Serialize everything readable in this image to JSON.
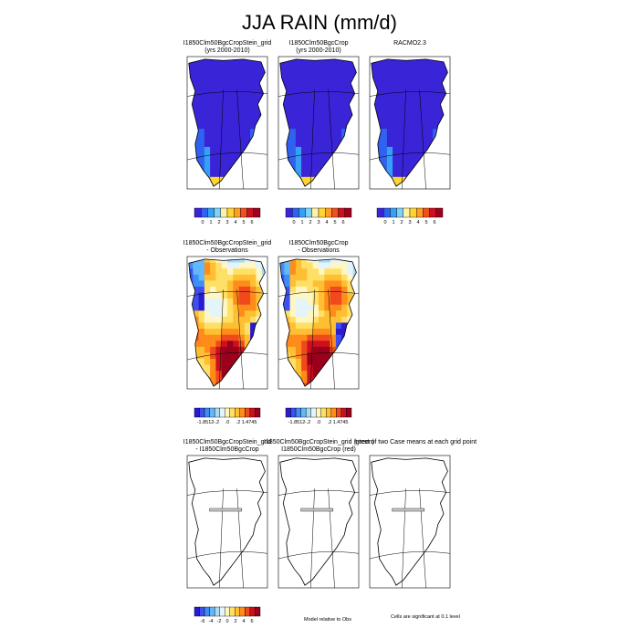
{
  "title": "JJA RAIN (mm/d)",
  "colors": {
    "ocean": "#ffffff",
    "outline": "#000000",
    "ice": "#3a5ad6",
    "land_fill": "#ffffff"
  },
  "rows": [
    {
      "panels": [
        {
          "title": "I1850Clm50BgcCropStein_grid",
          "subtitle": "(yrs 2000-2010)",
          "field": "model_a"
        },
        {
          "title": "I1850Clm50BgcCrop",
          "subtitle": "(yrs 2000-2010)",
          "field": "model_b"
        },
        {
          "title": "RACMO2.3",
          "subtitle": "",
          "field": "obs"
        }
      ],
      "colorbars": [
        {
          "ticks": [
            "0",
            "1",
            "2",
            "3",
            "4",
            "5",
            "6"
          ],
          "colors": [
            "#3a24d8",
            "#2f62f0",
            "#36a0f7",
            "#7fd1f5",
            "#fff2a6",
            "#ffd433",
            "#ff9e1f",
            "#f0501e",
            "#cc1020",
            "#a0001f"
          ]
        },
        {
          "ticks": [
            "0",
            "1",
            "2",
            "3",
            "4",
            "5",
            "6"
          ],
          "colors": [
            "#3a24d8",
            "#2f62f0",
            "#36a0f7",
            "#7fd1f5",
            "#fff2a6",
            "#ffd433",
            "#ff9e1f",
            "#f0501e",
            "#cc1020",
            "#a0001f"
          ]
        },
        {
          "ticks": [
            "0",
            "1",
            "2",
            "3",
            "4",
            "5",
            "6"
          ],
          "colors": [
            "#3a24d8",
            "#2f62f0",
            "#36a0f7",
            "#7fd1f5",
            "#fff2a6",
            "#ffd433",
            "#ff9e1f",
            "#f0501e",
            "#cc1020",
            "#a0001f"
          ]
        }
      ]
    },
    {
      "panels": [
        {
          "title": "I1850Clm50BgcCropStein_grid",
          "subtitle": "- Observations",
          "field": "diff_obs_a"
        },
        {
          "title": "I1850Clm50BgcCrop",
          "subtitle": "- Observations",
          "field": "diff_obs_b"
        }
      ],
      "colorbars": [
        {
          "ticks": [
            "-1.8512",
            "-.2",
            ".0",
            ".2",
            "1.4745"
          ],
          "colors": [
            "#2a1ad0",
            "#3d4ff0",
            "#3f8ef7",
            "#63b8fa",
            "#a8dcf6",
            "#e4f4fb",
            "#fff6c2",
            "#ffe066",
            "#ffbf33",
            "#ff8c1a",
            "#f04a1c",
            "#cc1020",
            "#9a001c"
          ]
        },
        {
          "ticks": [
            "-1.8512",
            "-.2",
            ".0",
            ".2",
            "1.4745"
          ],
          "colors": [
            "#2a1ad0",
            "#3d4ff0",
            "#3f8ef7",
            "#63b8fa",
            "#a8dcf6",
            "#e4f4fb",
            "#fff6c2",
            "#ffe066",
            "#ffbf33",
            "#ff8c1a",
            "#f04a1c",
            "#cc1020",
            "#9a001c"
          ]
        }
      ]
    },
    {
      "panels": [
        {
          "title": "I1850Clm50BgcCropStein_grid",
          "subtitle": "- I1850Clm50BgcCrop",
          "field": "outline"
        },
        {
          "title": "I1850Clm50BgcCropStein_grid (green)",
          "subtitle": "I1850Clm50BgcCrop (red)",
          "field": "outline"
        },
        {
          "title": "t-test of two Case means at each grid point",
          "subtitle": "",
          "field": "outline"
        }
      ],
      "colorbars": [
        {
          "ticks": [
            "-6",
            "-4",
            "-2",
            "0",
            "2",
            "4",
            "6"
          ],
          "colors": [
            "#2a1ad0",
            "#3d4ff0",
            "#3f8ef7",
            "#63b8fa",
            "#a8dcf6",
            "#e4f4fb",
            "#fff6c2",
            "#ffe066",
            "#ffbf33",
            "#ff8c1a",
            "#f04a1c",
            "#cc1020",
            "#9a001c"
          ]
        }
      ],
      "notes": [
        "Model relative to Obs",
        "Cells are significant at 0.1 level"
      ]
    }
  ],
  "chart_data": {
    "type": "heatmap",
    "title": "JJA RAIN (mm/d)",
    "variable": "RAIN",
    "season": "JJA",
    "units": "mm/d",
    "panels": [
      {
        "title": "I1850Clm50BgcCropStein_grid (yrs 2000-2010)",
        "colorbar_range": [
          0,
          6
        ],
        "dominant_value": 0
      },
      {
        "title": "I1850Clm50BgcCrop (yrs 2000-2010)",
        "colorbar_range": [
          0,
          6
        ],
        "dominant_value": 0
      },
      {
        "title": "RACMO2.3",
        "colorbar_range": [
          0,
          6
        ],
        "dominant_value": 0
      },
      {
        "title": "I1850Clm50BgcCropStein_grid - Observations",
        "colorbar_range": [
          -1.8512,
          1.4745
        ]
      },
      {
        "title": "I1850Clm50BgcCrop - Observations",
        "colorbar_range": [
          -1.8512,
          1.4745
        ]
      },
      {
        "title": "I1850Clm50BgcCropStein_grid - I1850Clm50BgcCrop",
        "colorbar_range": [
          -6,
          6
        ],
        "dominant_value": 0
      }
    ]
  }
}
